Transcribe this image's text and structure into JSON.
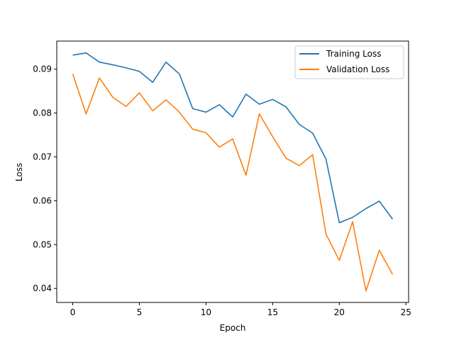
{
  "chart_data": {
    "type": "line",
    "title": "",
    "xlabel": "Epoch",
    "ylabel": "Loss",
    "x": [
      0,
      1,
      2,
      3,
      4,
      5,
      6,
      7,
      8,
      9,
      10,
      11,
      12,
      13,
      14,
      15,
      16,
      17,
      18,
      19,
      20,
      21,
      22,
      23,
      24
    ],
    "xlim": [
      -1.2,
      25.2
    ],
    "ylim": [
      0.0368,
      0.0964
    ],
    "xticks": [
      0,
      5,
      10,
      15,
      20,
      25
    ],
    "yticks": [
      0.04,
      0.05,
      0.06,
      0.07,
      0.08,
      0.09
    ],
    "xtick_labels": [
      "0",
      "5",
      "10",
      "15",
      "20",
      "25"
    ],
    "ytick_labels": [
      "0.04",
      "0.05",
      "0.06",
      "0.07",
      "0.08",
      "0.09"
    ],
    "grid": false,
    "legend": "top-right",
    "series": [
      {
        "name": "Training Loss",
        "color": "#1f77b4",
        "values": [
          0.0932,
          0.0937,
          0.0916,
          0.091,
          0.0903,
          0.0895,
          0.087,
          0.0916,
          0.0889,
          0.081,
          0.0802,
          0.0819,
          0.0791,
          0.0843,
          0.082,
          0.0831,
          0.0814,
          0.0774,
          0.0754,
          0.0695,
          0.055,
          0.0562,
          0.0582,
          0.0599,
          0.0558
        ]
      },
      {
        "name": "Validation Loss",
        "color": "#ff7f0e",
        "values": [
          0.0889,
          0.0798,
          0.088,
          0.0836,
          0.0815,
          0.0846,
          0.0805,
          0.083,
          0.0802,
          0.0763,
          0.0755,
          0.0722,
          0.0741,
          0.0658,
          0.0798,
          0.0746,
          0.0697,
          0.068,
          0.0705,
          0.0524,
          0.0464,
          0.0552,
          0.0394,
          0.0487,
          0.0432
        ]
      }
    ]
  }
}
